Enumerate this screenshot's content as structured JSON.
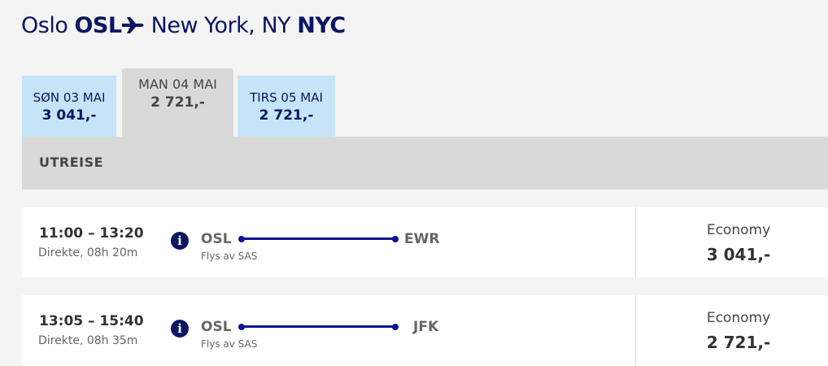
{
  "header": {
    "from_city": "Oslo",
    "from_code": "OSL",
    "to_city": "New York, NY",
    "to_code": "NYC"
  },
  "date_tabs": [
    {
      "date": "SØN 03 MAI",
      "price": "3 041,-"
    },
    {
      "date": "MAN 04 MAI",
      "price": "2 721,-"
    },
    {
      "date": "TIRS 05 MAI",
      "price": "2 721,-"
    }
  ],
  "section_title": "UTREISE",
  "flights": [
    {
      "times": "11:00 – 13:20",
      "duration": "Direkte, 08h 20m",
      "origin": "OSL",
      "destination": "EWR",
      "operator": "Flys av SAS",
      "cabin": "Economy",
      "price": "3 041,-"
    },
    {
      "times": "13:05 – 15:40",
      "duration": "Direkte, 08h 35m",
      "origin": "OSL",
      "destination": "JFK",
      "operator": "Flys av SAS",
      "cabin": "Economy",
      "price": "2 721,-"
    }
  ]
}
